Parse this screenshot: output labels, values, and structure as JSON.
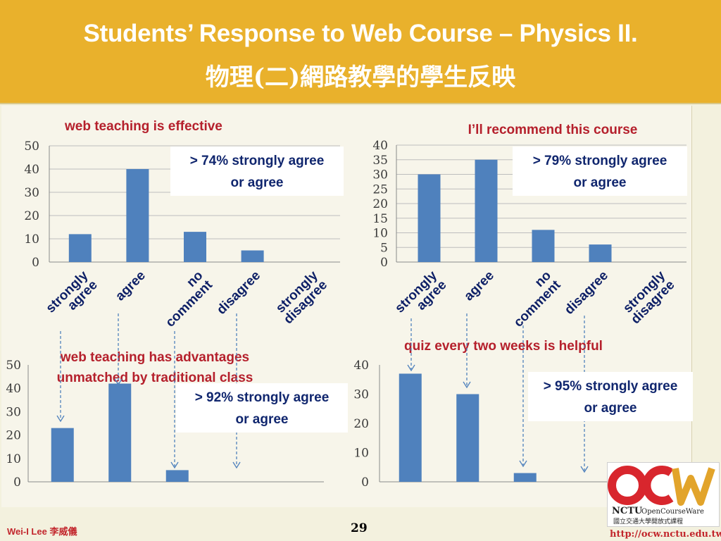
{
  "slide": {
    "title_en": "Students’ Response to Web Course – Physics II.",
    "title_zh": "物理(二)網路教學的學生反映",
    "author": "Wei-I Lee 李威儀",
    "page": "29",
    "url": "http://ocw.nctu.edu.tw",
    "logo": {
      "brand": "NCTU",
      "sub": "OpenCourseWare",
      "zh": "國立交通大學開放式課程"
    }
  },
  "colors": {
    "bar": "#4f81bd",
    "title_red": "#b5202c",
    "callout_text": "#10266e",
    "header": "#e9b12c"
  },
  "callouts": [
    {
      "line1": "> 74% strongly agree",
      "line2": "or agree"
    },
    {
      "line1": "> 79% strongly agree",
      "line2": "or agree"
    },
    {
      "line1": "> 92% strongly agree",
      "line2": "or agree"
    },
    {
      "line1": "> 95% strongly agree",
      "line2": "or agree"
    }
  ],
  "chart_data": [
    {
      "type": "bar",
      "title": "web teaching is effective",
      "categories": [
        [
          "strongly",
          "agree"
        ],
        [
          "agree"
        ],
        [
          "no",
          "comment"
        ],
        [
          "disagree"
        ],
        [
          "strongly",
          "disagree"
        ]
      ],
      "values": [
        12,
        40,
        13,
        5,
        0
      ],
      "ylim": [
        0,
        50
      ],
      "yticks": [
        0,
        10,
        20,
        30,
        40,
        50
      ],
      "grid": true
    },
    {
      "type": "bar",
      "title": "I’ll recommend this course",
      "categories": [
        [
          "strongly",
          "agree"
        ],
        [
          "agree"
        ],
        [
          "no",
          "comment"
        ],
        [
          "disagree"
        ],
        [
          "strongly",
          "disagree"
        ]
      ],
      "values": [
        30,
        35,
        11,
        6,
        0
      ],
      "ylim": [
        0,
        40
      ],
      "yticks": [
        0,
        5,
        10,
        15,
        20,
        25,
        30,
        35,
        40
      ],
      "grid": true
    },
    {
      "type": "bar",
      "title": [
        "web teaching has advantages",
        "unmatched by traditional class"
      ],
      "categories": [
        [
          "strongly",
          "agree"
        ],
        [
          "agree"
        ],
        [
          "no",
          "comment"
        ],
        [
          "disagree"
        ]
      ],
      "values": [
        23,
        42,
        5,
        0
      ],
      "ylim": [
        0,
        50
      ],
      "yticks": [
        0,
        10,
        20,
        30,
        40,
        50
      ],
      "grid": false
    },
    {
      "type": "bar",
      "title": "quiz every two weeks is helpful",
      "categories": [
        [
          "strongly",
          "agree"
        ],
        [
          "agree"
        ],
        [
          "no",
          "comment"
        ],
        [
          "disagree"
        ],
        [
          "strongly",
          "disagree"
        ]
      ],
      "values": [
        37,
        30,
        3,
        0,
        0
      ],
      "ylim": [
        0,
        40
      ],
      "yticks": [
        0,
        10,
        20,
        30,
        40
      ],
      "grid": false
    }
  ]
}
